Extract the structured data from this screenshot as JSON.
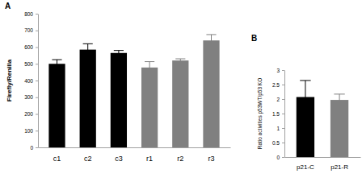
{
  "chart_data": [
    {
      "type": "bar",
      "title": "A",
      "y_label": "Firefly/Renilla",
      "categories": [
        "c1",
        "c2",
        "c3",
        "r1",
        "r2",
        "r3"
      ],
      "values": [
        500,
        585,
        565,
        478,
        520,
        640
      ],
      "errors": [
        25,
        35,
        15,
        35,
        10,
        35
      ],
      "colors": [
        "#000000",
        "#000000",
        "#000000",
        "#808080",
        "#808080",
        "#808080"
      ],
      "ylim": [
        0,
        800
      ],
      "yticks": [
        0,
        100,
        200,
        300,
        400,
        500,
        600,
        700,
        800
      ]
    },
    {
      "type": "bar",
      "title": "B",
      "y_label": "Ratio activities p53WT/p53 KO",
      "categories": [
        "p21-C",
        "p21-R"
      ],
      "values": [
        2.07,
        1.97
      ],
      "errors": [
        0.57,
        0.2
      ],
      "colors": [
        "#000000",
        "#808080"
      ],
      "ylim": [
        0,
        3
      ],
      "yticks": [
        0,
        0.5,
        1,
        1.5,
        2,
        2.5,
        3
      ]
    }
  ]
}
